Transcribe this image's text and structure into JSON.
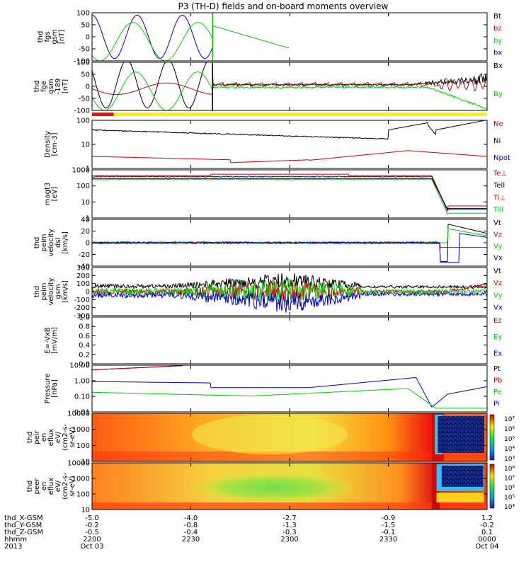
{
  "chart_data": {
    "type": "line",
    "title": "P3 (TH-D) fields and on-board moments overview",
    "colors": {
      "black": "#000000",
      "red": "#cc0000",
      "green": "#00cc00",
      "blue": "#0000cc",
      "yellow": "#ffee00"
    },
    "x_ticks": [
      {
        "time": "2200",
        "x_gsm": "-5.0",
        "y_gsm": "-0.2",
        "z_gsm": "-0.5",
        "date": "Oct 03"
      },
      {
        "time": "2230",
        "x_gsm": "-4.0",
        "y_gsm": "-0.8",
        "z_gsm": "-0.4",
        "date": ""
      },
      {
        "time": "2300",
        "x_gsm": "-2.7",
        "y_gsm": "-1.3",
        "z_gsm": "-0.3",
        "date": ""
      },
      {
        "time": "2330",
        "x_gsm": "-0.9",
        "y_gsm": "-1.5",
        "z_gsm": "-0.1",
        "date": ""
      },
      {
        "time": "0000",
        "x_gsm": "1.2",
        "y_gsm": "-0.2",
        "z_gsm": "0.1",
        "date": "Oct 04"
      }
    ],
    "footer_labels": [
      "thd_X-GSM",
      "thd_Y-GSM",
      "thd_Z-GSM",
      "hhmm",
      "2013"
    ],
    "panels": [
      {
        "id": "fgs",
        "ylabel": [
          "thd",
          "fgs",
          "gsm",
          "[nT]"
        ],
        "yticks": [
          "100",
          "50",
          "0",
          "-50",
          "-100"
        ],
        "legend": [
          {
            "name": "Bt",
            "color": "#000000"
          },
          {
            "name": "bz",
            "color": "#cc0000"
          },
          {
            "name": "by",
            "color": "#00cc00"
          },
          {
            "name": "bx",
            "color": "#0000cc"
          }
        ]
      },
      {
        "id": "fge",
        "ylabel": [
          "thd",
          "fge",
          "gsm",
          "-189",
          "[nT]"
        ],
        "yticks": [
          "100",
          "50",
          "0",
          "-50",
          "-100"
        ],
        "legend": [
          {
            "name": "Bx",
            "color": "#000000"
          },
          {
            "name": "By",
            "color": "#00cc00"
          }
        ]
      },
      {
        "id": "density",
        "ylabel": [
          "Density",
          "[cm-3]"
        ],
        "yticks": [
          "100",
          "10",
          "1"
        ],
        "legend": [
          {
            "name": "Ne",
            "color": "#cc0000"
          },
          {
            "name": "Ni",
            "color": "#000000"
          },
          {
            "name": "Npot",
            "color": "#0000cc"
          }
        ]
      },
      {
        "id": "temp",
        "ylabel": [
          "magt3",
          "[eV]"
        ],
        "yticks": [
          "1000",
          "100",
          "10",
          "1"
        ],
        "legend": [
          {
            "name": "Te⊥",
            "color": "#cc0000"
          },
          {
            "name": "Tell",
            "color": "#000000"
          },
          {
            "name": "Ti⊥",
            "color": "#cc0000"
          },
          {
            "name": "Till",
            "color": "#00cc00"
          }
        ]
      },
      {
        "id": "vel_dsl",
        "ylabel": [
          "thd",
          "peim",
          "velocity",
          "dsl",
          "[km/s]"
        ],
        "yticks": [
          "40",
          "20",
          "0",
          "-20",
          "-40"
        ],
        "legend": [
          {
            "name": "Vt",
            "color": "#000000"
          },
          {
            "name": "Vz",
            "color": "#cc0000"
          },
          {
            "name": "Vy",
            "color": "#00cc00"
          },
          {
            "name": "Vx",
            "color": "#0000cc"
          }
        ]
      },
      {
        "id": "vel_gsm",
        "ylabel": [
          "thd",
          "peim",
          "velocity",
          "gsm",
          "[km/s]"
        ],
        "yticks": [
          "300",
          "200",
          "100",
          "0",
          "-100",
          "-200",
          "-300"
        ],
        "legend": [
          {
            "name": "Vt",
            "color": "#000000"
          },
          {
            "name": "Vz",
            "color": "#cc0000"
          },
          {
            "name": "Vy",
            "color": "#00cc00"
          },
          {
            "name": "Vx",
            "color": "#0000cc"
          }
        ]
      },
      {
        "id": "efield",
        "ylabel": [
          "E=-VxB",
          "[mV/m]"
        ],
        "yticks": [
          "1.0",
          "0.8",
          "0.6",
          "0.4",
          "0.2",
          "0.0"
        ],
        "legend": [
          {
            "name": "Ez",
            "color": "#cc0000"
          },
          {
            "name": "Ey",
            "color": "#00cc00"
          },
          {
            "name": "Ex",
            "color": "#0000cc"
          }
        ]
      },
      {
        "id": "pressure",
        "ylabel": [
          "Pressure",
          "[nPa]"
        ],
        "yticks": [
          "10.00",
          "1.00",
          "0.10",
          "0.01"
        ],
        "legend": [
          {
            "name": "Pt",
            "color": "#000000"
          },
          {
            "name": "Pb",
            "color": "#cc0000"
          },
          {
            "name": "Pe",
            "color": "#00cc00"
          },
          {
            "name": "Pi",
            "color": "#0000cc"
          }
        ]
      },
      {
        "id": "peir",
        "ylabel": [
          "thd",
          "peir",
          "en",
          "eflux",
          "eV/",
          "(cm2-s-",
          "sr-eV)"
        ],
        "yticks": [
          "10000",
          "1000",
          "100",
          "10"
        ],
        "colorbar": [
          "10⁷",
          "10⁶",
          "10⁵",
          "10⁴",
          "10³"
        ]
      },
      {
        "id": "peer",
        "ylabel": [
          "thd",
          "peer",
          "en",
          "eflux",
          "eV/",
          "(cm2-s-",
          "sr-eV)"
        ],
        "yticks": [
          "10000",
          "1000",
          "100",
          "10"
        ],
        "colorbar": [
          "10⁸",
          "10⁷",
          "10⁶",
          "10⁵",
          "10⁴"
        ]
      }
    ]
  }
}
